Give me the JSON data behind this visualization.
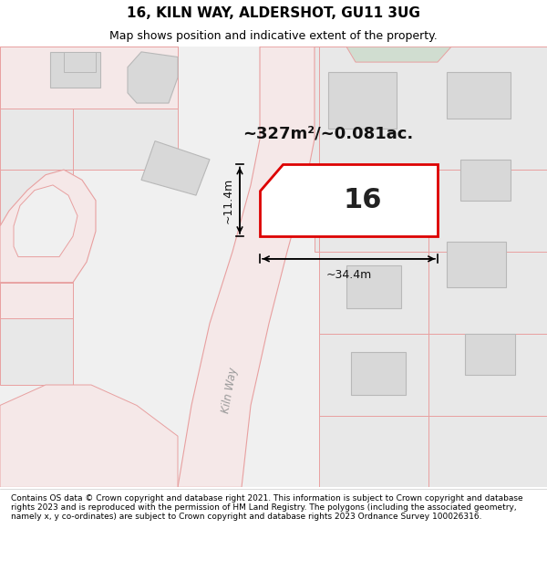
{
  "title": "16, KILN WAY, ALDERSHOT, GU11 3UG",
  "subtitle": "Map shows position and indicative extent of the property.",
  "footer": "Contains OS data © Crown copyright and database right 2021. This information is subject to Crown copyright and database rights 2023 and is reproduced with the permission of HM Land Registry. The polygons (including the associated geometry, namely x, y co-ordinates) are subject to Crown copyright and database rights 2023 Ordnance Survey 100026316.",
  "map_bg": "#f0f0f0",
  "parcel_bg": "#e8e8e8",
  "road_color": "#f5e8e8",
  "road_outline": "#e8a0a0",
  "building_fill": "#d8d8d8",
  "building_outline": "#b8b8b8",
  "highlight_fill": "#ffffff",
  "highlight_outline": "#dd0000",
  "green_fill": "#d0ddd0",
  "area_label": "~327m²/~0.081ac.",
  "plot_number": "16",
  "dim_width": "~34.4m",
  "dim_height": "~11.4m",
  "road_label": "Kiln Way",
  "title_fontsize": 11,
  "subtitle_fontsize": 9,
  "footer_fontsize": 6.5
}
